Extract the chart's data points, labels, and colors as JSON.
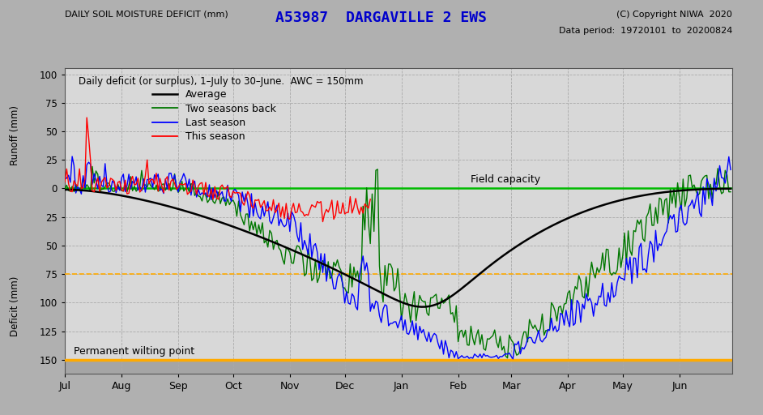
{
  "title": "A53987  DARGAVILLE 2 EWS",
  "copyright": "(C) Copyright NIWA  2020",
  "data_period": "Data period:  19720101  to  20200824",
  "ylabel_top": "Runoff (mm)",
  "ylabel_bottom": "Deficit (mm)",
  "xlabel_top": "DAILY SOIL MOISTURE DEFICIT (mm)",
  "subtitle": "Daily deficit (or surplus), 1–July to 30–June.  AWC = 150mm",
  "field_capacity_label": "Field capacity",
  "pwp_label": "Permanent wilting point",
  "title_color": "#0000cc",
  "fig_bg_color": "#b0b0b0",
  "plot_bg_color": "#d8d8d8",
  "below_pwp_color": "#a8a8a8",
  "avg_color": "#000000",
  "two_back_color": "#007700",
  "last_color": "#0000ff",
  "this_color": "#ff0000",
  "field_cap_color": "#00bb00",
  "pwp_color": "#ffaa00",
  "dashed_ref_color": "#ffaa00",
  "grid_color": "#aaaaaa",
  "months": [
    "Jul",
    "Aug",
    "Sep",
    "Oct",
    "Nov",
    "Dec",
    "Jan",
    "Feb",
    "Mar",
    "Apr",
    "May",
    "Jun"
  ],
  "month_starts": [
    0,
    31,
    62,
    92,
    123,
    153,
    184,
    215,
    244,
    275,
    305,
    336,
    365
  ],
  "yticks_pos": [
    100,
    75,
    50,
    25,
    0,
    -25,
    -50,
    -75,
    -100,
    -125,
    -150
  ],
  "yticks_lbl": [
    "100",
    "75",
    "50",
    "25",
    "0",
    "25",
    "50",
    "75",
    "100",
    "125",
    "150"
  ]
}
